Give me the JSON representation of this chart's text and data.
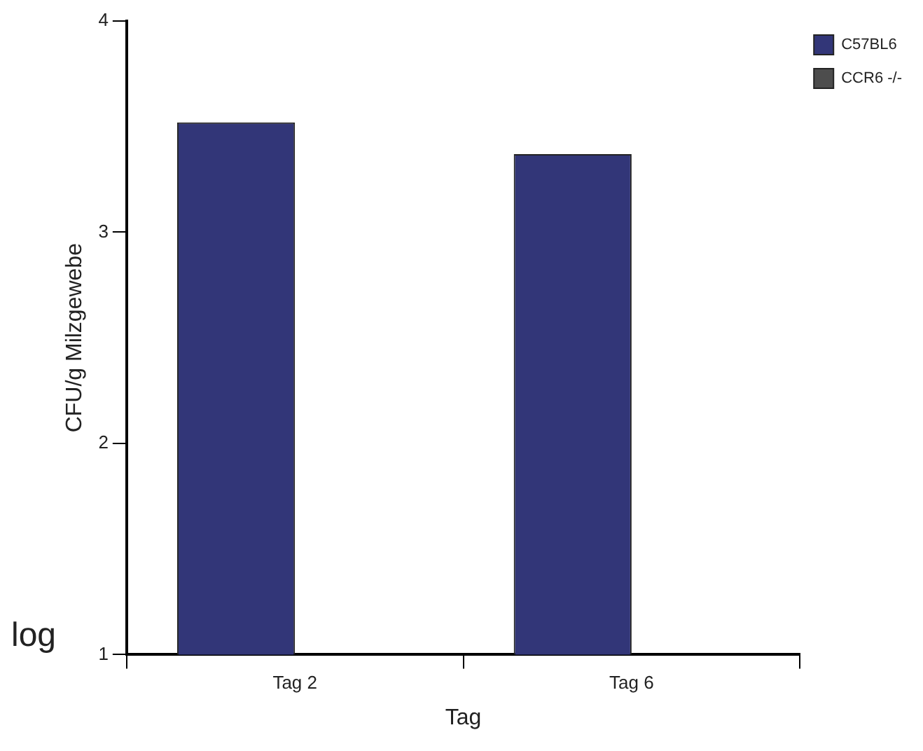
{
  "chart_data": {
    "type": "bar",
    "xlabel": "Tag",
    "ylabel": "CFU/g Milzgewebe",
    "annotations": [
      "log"
    ],
    "categories": [
      "Tag 2",
      "Tag 6"
    ],
    "series": [
      {
        "name": "C57BL6",
        "color": "#323678",
        "values": [
          3.52,
          3.37
        ]
      },
      {
        "name": "CCR6 -/-",
        "color": "#4d4d4d",
        "values": [
          null,
          null
        ]
      }
    ],
    "ylim": [
      1,
      4
    ],
    "yticks": [
      1,
      2,
      3,
      4
    ],
    "grid": false,
    "legend": "top right"
  }
}
